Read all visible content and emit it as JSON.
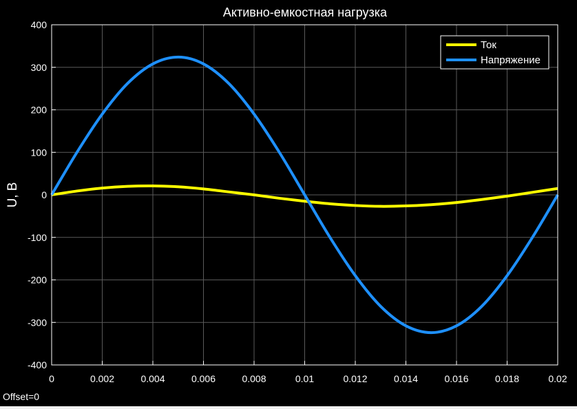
{
  "chart_data": {
    "type": "line",
    "title": "Активно-емкостная нагрузка",
    "xlabel": "",
    "ylabel": "U, B",
    "xlim": [
      0,
      0.02
    ],
    "ylim": [
      -400,
      400
    ],
    "x_ticks": [
      0,
      0.002,
      0.004,
      0.006,
      0.008,
      0.01,
      0.012,
      0.014,
      0.016,
      0.018,
      0.02
    ],
    "x_tick_labels": [
      "0",
      "0.002",
      "0.004",
      "0.006",
      "0.008",
      "0.01",
      "0.012",
      "0.014",
      "0.016",
      "0.018",
      "0.02"
    ],
    "y_ticks": [
      -400,
      -300,
      -200,
      -100,
      0,
      100,
      200,
      300,
      400
    ],
    "y_tick_labels": [
      "-400",
      "-300",
      "-200",
      "-100",
      "0",
      "100",
      "200",
      "300",
      "400"
    ],
    "grid": true,
    "legend_position": "top-right",
    "x": [
      0,
      0.001,
      0.002,
      0.003,
      0.004,
      0.005,
      0.006,
      0.007,
      0.008,
      0.009,
      0.01,
      0.011,
      0.012,
      0.013,
      0.014,
      0.015,
      0.016,
      0.017,
      0.018,
      0.019,
      0.02
    ],
    "series": [
      {
        "name": "Ток",
        "color": "#ffff00",
        "values": [
          0,
          9,
          16,
          20,
          21,
          19,
          14,
          7,
          0,
          -8,
          -15,
          -21,
          -25,
          -27,
          -26,
          -23,
          -18,
          -11,
          -3,
          6,
          15
        ]
      },
      {
        "name": "Напряжение",
        "color": "#1e90ff",
        "values": [
          0,
          100,
          190,
          262,
          308,
          324,
          308,
          262,
          190,
          100,
          0,
          -100,
          -190,
          -262,
          -308,
          -324,
          -308,
          -262,
          -190,
          -100,
          0
        ]
      }
    ]
  },
  "footer": {
    "offset_label": "Offset=0"
  }
}
